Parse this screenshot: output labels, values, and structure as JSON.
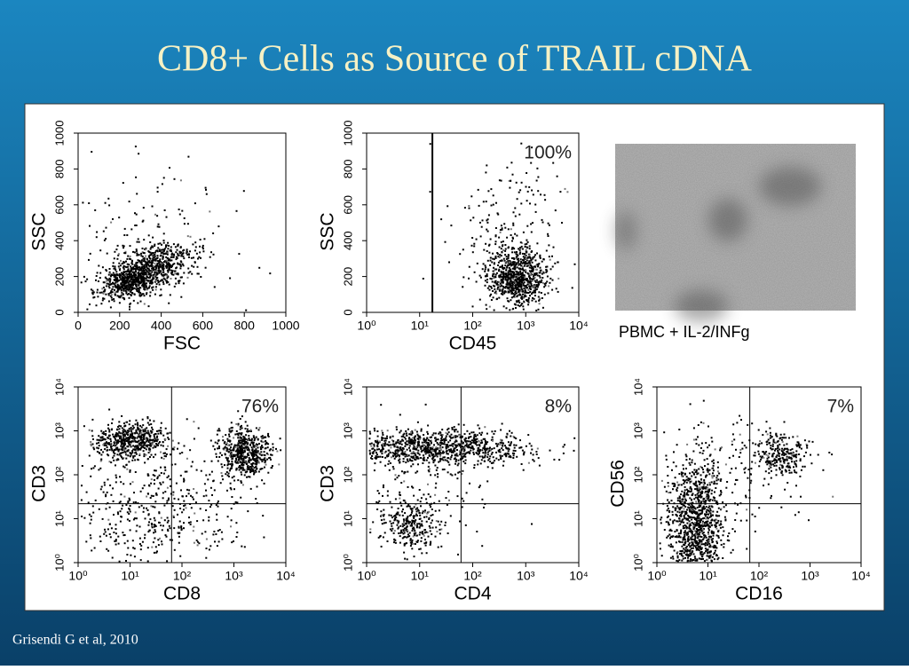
{
  "header": {
    "title": "CD8+ Cells as Source of TRAIL cDNA"
  },
  "panels": [
    {
      "x_label": "FSC",
      "y_label": "SSC",
      "x_tick_labels": [
        "0",
        "200",
        "400",
        "600",
        "800",
        "1000"
      ],
      "y_tick_labels": [
        "0",
        "200",
        "400",
        "600",
        "800",
        "1000"
      ]
    },
    {
      "x_label": "CD45",
      "y_label": "SSC",
      "annotation": "100%",
      "x_tick_labels": [
        "10⁰",
        "10¹",
        "10²",
        "10³",
        "10⁴"
      ],
      "y_tick_labels": [
        "0",
        "200",
        "400",
        "600",
        "800",
        "1000"
      ]
    },
    {
      "x_label": "CD8",
      "y_label": "CD3",
      "annotation": "76%",
      "x_tick_labels": [
        "10⁰",
        "10¹",
        "10²",
        "10³",
        "10⁴"
      ],
      "y_tick_labels": [
        "10⁰",
        "10¹",
        "10²",
        "10³",
        "10⁴"
      ]
    },
    {
      "x_label": "CD4",
      "y_label": "CD3",
      "annotation": "8%",
      "x_tick_labels": [
        "10⁰",
        "10¹",
        "10²",
        "10³",
        "10⁴"
      ],
      "y_tick_labels": [
        "10⁰",
        "10¹",
        "10²",
        "10³",
        "10⁴"
      ]
    },
    {
      "x_label": "CD16",
      "y_label": "CD56",
      "annotation": "7%",
      "x_tick_labels": [
        "10⁰",
        "10¹",
        "10²",
        "10³",
        "10⁴"
      ],
      "y_tick_labels": [
        "10⁰",
        "10¹",
        "10²",
        "10³",
        "10⁴"
      ]
    }
  ],
  "image_caption": "PBMC + IL-2/INFg",
  "footer": {
    "citation": "Grisendi G et al, 2010"
  }
}
